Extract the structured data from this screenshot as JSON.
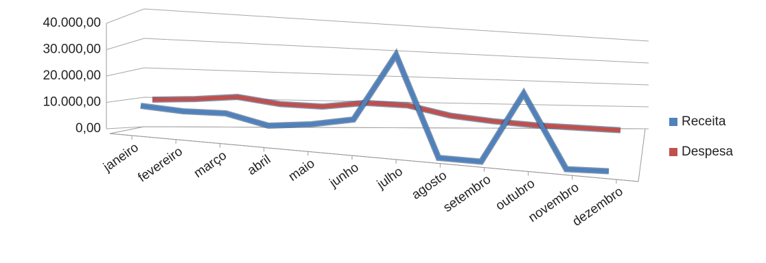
{
  "chart_data": {
    "type": "line",
    "categories": [
      "janeiro",
      "fevereiro",
      "março",
      "abril",
      "maio",
      "junho",
      "julho",
      "agosto",
      "setembro",
      "outubro",
      "novembro",
      "dezembro"
    ],
    "series": [
      {
        "name": "Receita",
        "color": "#4f81bd",
        "values": [
          8500,
          8000,
          8500,
          6000,
          7500,
          10000,
          30000,
          1000,
          1000,
          22000,
          1000,
          1500
        ]
      },
      {
        "name": "Despesa",
        "color": "#c0504d",
        "values": [
          11000,
          11500,
          12500,
          10500,
          10000,
          11500,
          11000,
          8000,
          6500,
          5500,
          5000,
          4500
        ]
      }
    ],
    "ylim": [
      0,
      40000
    ],
    "yticks": [
      {
        "value": 0,
        "label": "0,00"
      },
      {
        "value": 10000,
        "label": "10.000,00"
      },
      {
        "value": 20000,
        "label": "20.000,00"
      },
      {
        "value": 30000,
        "label": "30.000,00"
      },
      {
        "value": 40000,
        "label": "40.000,00"
      }
    ],
    "grid": true,
    "legend": "right"
  }
}
